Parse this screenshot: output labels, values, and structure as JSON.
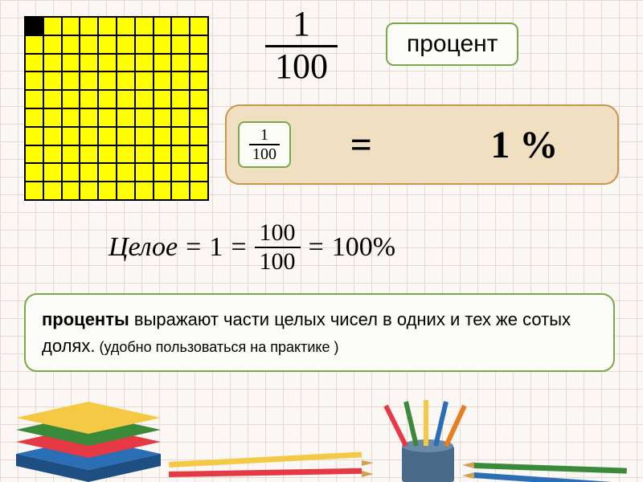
{
  "grid": {
    "rows": 10,
    "cols": 10,
    "cell_color": "#ffff00",
    "line_color": "#000000",
    "shaded_cells": [
      0
    ]
  },
  "big_fraction": {
    "numerator": "1",
    "denominator": "100"
  },
  "label_percent": "процент",
  "equation_bar": {
    "fraction": {
      "numerator": "1",
      "denominator": "100"
    },
    "equals": "=",
    "result": "1 %"
  },
  "whole_equation": {
    "word": "Целое",
    "one": "1",
    "frac": {
      "numerator": "100",
      "denominator": "100"
    },
    "percent": "100%"
  },
  "definition": {
    "bold": "проценты",
    "text1": " выражают части целых чисел в одних и тех же сотых долях.",
    "small": " (удобно пользоваться на практике )"
  },
  "colors": {
    "green_border": "#7aa84a",
    "green_bg": "#fbfcf8",
    "orange_border": "#c9964f",
    "orange_bg": "#f0dfc0",
    "page_bg": "#faf7f4",
    "grid_line": "#e8d8d0"
  }
}
